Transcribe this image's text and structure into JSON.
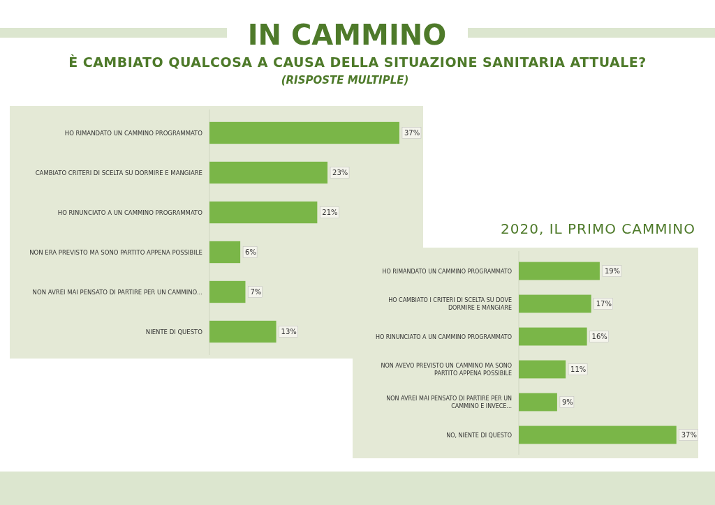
{
  "chart_data": [
    {
      "type": "bar",
      "orientation": "horizontal",
      "title": "IN CAMMINO",
      "subtitle": "È CAMBIATO QUALCOSA A CAUSA DELLA SITUAZIONE SANITARIA ATTUALE?",
      "annotations": [
        "(RISPOSTE MULTIPLE)"
      ],
      "categories": [
        "HO RIMANDATO UN CAMMINO PROGRAMMATO",
        "CAMBIATO CRITERI DI SCELTA SU DORMIRE E MANGIARE",
        "HO RINUNCIATO A UN CAMMINO PROGRAMMATO",
        "NON ERA PREVISTO MA SONO PARTITO APPENA POSSIBILE",
        "NON AVREI MAI PENSATO DI PARTIRE PER UN CAMMINO...",
        "NIENTE DI QUESTO"
      ],
      "values": [
        37,
        23,
        21,
        6,
        7,
        13
      ],
      "value_labels": [
        "37%",
        "23%",
        "21%",
        "6%",
        "7%",
        "13%"
      ],
      "color": "#7ab648"
    },
    {
      "type": "bar",
      "orientation": "horizontal",
      "title": "2020, IL PRIMO CAMMINO",
      "categories": [
        "HO RIMANDATO UN CAMMINO PROGRAMMATO",
        "HO CAMBIATO I CRITERI DI SCELTA SU DOVE DORMIRE E MANGIARE",
        "HO RINUNCIATO A UN CAMMINO PROGRAMMATO",
        "NON AVEVO PREVISTO UN CAMMINO  MA SONO PARTITO APPENA POSSIBILE",
        "NON AVREI MAI PENSATO DI PARTIRE PER UN CAMMINO E INVECE...",
        "NO, NIENTE DI QUESTO"
      ],
      "values": [
        19,
        17,
        16,
        11,
        9,
        37
      ],
      "value_labels": [
        "19%",
        "17%",
        "16%",
        "11%",
        "9%",
        "37%"
      ],
      "color": "#7ab648"
    }
  ]
}
